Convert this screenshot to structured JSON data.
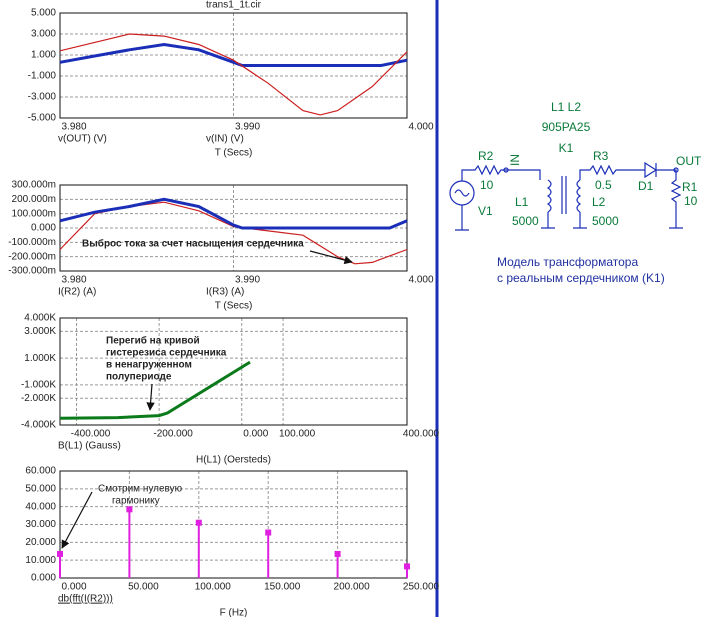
{
  "chart_data": [
    {
      "type": "line",
      "title": "trans1_1t.cir",
      "xlabel": "T (Secs)",
      "xlim": [
        3.98,
        4.0
      ],
      "ylim": [
        -5,
        5
      ],
      "xticks": [
        {
          "value": 3.98,
          "label": "3.980"
        },
        {
          "value": 3.99,
          "label": "3.990"
        },
        {
          "value": 4.0,
          "label": "4.000"
        }
      ],
      "yticks": [
        {
          "value": 5,
          "label": "5.000"
        },
        {
          "value": 3,
          "label": "3.000"
        },
        {
          "value": 1,
          "label": "1.000"
        },
        {
          "value": -1,
          "label": "-1.000"
        },
        {
          "value": -3,
          "label": "-3.000"
        },
        {
          "value": -5,
          "label": "-5.000"
        }
      ],
      "grid": true,
      "series": [
        {
          "name": "v(OUT) (V)",
          "color": "#1a2eb8",
          "x": [
            3.98,
            3.982,
            3.984,
            3.986,
            3.988,
            3.99,
            3.9905,
            3.9985,
            4.0
          ],
          "values": [
            0.3,
            0.9,
            1.5,
            2.0,
            1.5,
            0.3,
            0,
            0,
            0.5
          ]
        },
        {
          "name": "v(IN) (V)",
          "color": "#cc1f1f",
          "x": [
            3.98,
            3.982,
            3.984,
            3.986,
            3.988,
            3.99,
            3.992,
            3.994,
            3.995,
            3.996,
            3.998,
            4.0
          ],
          "values": [
            1.4,
            2.2,
            3.0,
            2.8,
            2.0,
            0.5,
            -1.7,
            -4.3,
            -4.7,
            -4.3,
            -2.0,
            1.3
          ]
        }
      ]
    },
    {
      "type": "line",
      "xlabel": "T (Secs)",
      "annotation": [
        "Выброс тока за счет насыщения сердечника"
      ],
      "xlim": [
        3.98,
        4.0
      ],
      "ylim": [
        -0.3,
        0.3
      ],
      "xticks": [
        {
          "value": 3.98,
          "label": "3.980"
        },
        {
          "value": 3.99,
          "label": "3.990"
        },
        {
          "value": 4.0,
          "label": "4.000"
        }
      ],
      "yticks": [
        {
          "value": 0.3,
          "label": "300.000m"
        },
        {
          "value": 0.2,
          "label": "200.000m"
        },
        {
          "value": 0.1,
          "label": "100.000m"
        },
        {
          "value": 0,
          "label": "0.000"
        },
        {
          "value": -0.1,
          "label": "-100.000m"
        },
        {
          "value": -0.2,
          "label": "-200.000m"
        },
        {
          "value": -0.3,
          "label": "-300.000m"
        }
      ],
      "grid": true,
      "series": [
        {
          "name": "I(R2) (A)",
          "color": "#cc1f1f",
          "x": [
            3.98,
            3.982,
            3.984,
            3.986,
            3.988,
            3.99,
            3.992,
            3.994,
            3.996,
            3.997,
            3.998,
            4.0
          ],
          "values": [
            -0.15,
            0.1,
            0.15,
            0.18,
            0.12,
            0.01,
            -0.02,
            -0.05,
            -0.2,
            -0.25,
            -0.24,
            -0.15
          ]
        },
        {
          "name": "I(R3) (A)",
          "color": "#1a2eb8",
          "x": [
            3.98,
            3.982,
            3.984,
            3.986,
            3.988,
            3.99,
            3.9905,
            3.999,
            4.0
          ],
          "values": [
            0.05,
            0.11,
            0.15,
            0.2,
            0.15,
            0.02,
            0,
            0,
            0.05
          ]
        }
      ]
    },
    {
      "type": "line",
      "xlabel": "H(L1) (Oersteds)",
      "annotation": [
        "Перегиб на кривой",
        "гистерезиса сердечника",
        "в ненагруженном",
        "полупериоде"
      ],
      "xlim": [
        -440,
        400
      ],
      "ylim": [
        -4000,
        4000
      ],
      "xticks": [
        {
          "value": -400,
          "label": "-400.000"
        },
        {
          "value": -200,
          "label": "-200.000"
        },
        {
          "value": 0,
          "label": "0.000"
        },
        {
          "value": 100,
          "label": "100.000"
        },
        {
          "value": 400,
          "label": "400.000"
        }
      ],
      "yticks": [
        {
          "value": 4000,
          "label": "4.000K"
        },
        {
          "value": 3000,
          "label": "3.000K"
        },
        {
          "value": 1000,
          "label": "1.000K"
        },
        {
          "value": -1000,
          "label": "-1.000K"
        },
        {
          "value": -2000,
          "label": "-2.000K"
        },
        {
          "value": -4000,
          "label": "-4.000K"
        }
      ],
      "grid": true,
      "series": [
        {
          "name": "B(L1) (Gauss)",
          "color": "#0a7a1a",
          "x": [
            -440,
            -300,
            -200,
            -180,
            20
          ],
          "values": [
            -3500,
            -3450,
            -3300,
            -3100,
            700
          ]
        }
      ]
    },
    {
      "type": "stem",
      "xlabel": "F (Hz)",
      "annotation": [
        "Смотрим нулевую",
        "гармонику"
      ],
      "xlim": [
        0,
        250
      ],
      "ylim": [
        0,
        60
      ],
      "xticks": [
        {
          "value": 0,
          "label": "0.000"
        },
        {
          "value": 50,
          "label": "50.000"
        },
        {
          "value": 100,
          "label": "100.000"
        },
        {
          "value": 150,
          "label": "150.000"
        },
        {
          "value": 200,
          "label": "200.000"
        },
        {
          "value": 250,
          "label": "250.000"
        }
      ],
      "yticks": [
        {
          "value": 60,
          "label": "60.000"
        },
        {
          "value": 50,
          "label": "50.000"
        },
        {
          "value": 40,
          "label": "40.000"
        },
        {
          "value": 30,
          "label": "30.000"
        },
        {
          "value": 20,
          "label": "20.000"
        },
        {
          "value": 10,
          "label": "10.000"
        },
        {
          "value": 0,
          "label": "0.000"
        }
      ],
      "grid": true,
      "series": [
        {
          "name": "db(fft(I(R2)))",
          "color": "#e020e0",
          "x": [
            0,
            50,
            100,
            150,
            200,
            250
          ],
          "values": [
            13.5,
            38.5,
            31,
            25.5,
            13.5,
            6.5
          ]
        }
      ]
    }
  ],
  "schematic": {
    "coupling": "L1 L2",
    "model": "905PA25",
    "k": "K1",
    "r2": "R2",
    "r2_value": "10",
    "in": "IN",
    "source": "V1",
    "r3": "R3",
    "r3_value": "0.5",
    "diode": "D1",
    "out": "OUT",
    "r1": "R1",
    "r1_value": "10",
    "l1": "L1",
    "l1_value": "5000",
    "l2": "L2",
    "l2_value": "5000",
    "caption": [
      "Модель трансформатора",
      "с реальным сердечником (K1)"
    ]
  }
}
